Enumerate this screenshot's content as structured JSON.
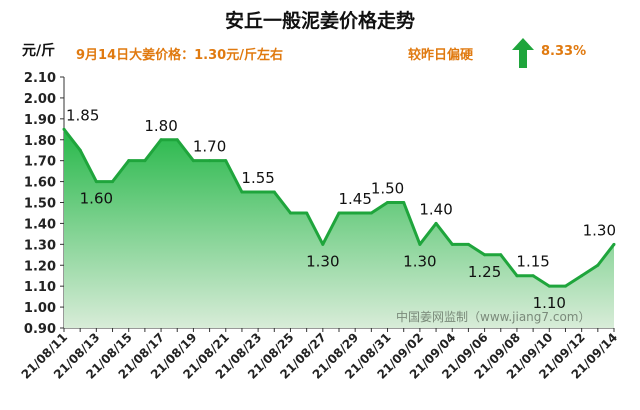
{
  "header": {
    "title": "安丘一般泥姜价格走势",
    "unit": "元/斤",
    "price_info": "9月14日大姜价格：1.30元/斤左右",
    "trend_label": "较昨日偏硬",
    "trend_value": "8.33%"
  },
  "colors": {
    "line": "#1fa53c",
    "fill_top": "#27b84a",
    "fill_bottom": "#d8ecd8",
    "accent": "#e07a10",
    "arrow": "#1fa53c"
  },
  "chart_data": {
    "type": "area",
    "title": "安丘一般泥姜价格走势",
    "ylabel": "元/斤",
    "ylim": [
      0.9,
      2.1
    ],
    "ytick_step": 0.1,
    "x": [
      "21/08/11",
      "21/08/12",
      "21/08/13",
      "21/08/14",
      "21/08/15",
      "21/08/16",
      "21/08/17",
      "21/08/18",
      "21/08/19",
      "21/08/20",
      "21/08/21",
      "21/08/22",
      "21/08/23",
      "21/08/24",
      "21/08/25",
      "21/08/26",
      "21/08/27",
      "21/08/28",
      "21/08/29",
      "21/08/30",
      "21/08/31",
      "21/09/01",
      "21/09/02",
      "21/09/03",
      "21/09/04",
      "21/09/05",
      "21/09/06",
      "21/09/07",
      "21/09/08",
      "21/09/09",
      "21/09/10",
      "21/09/11",
      "21/09/12",
      "21/09/13",
      "21/09/14"
    ],
    "values": [
      1.85,
      1.75,
      1.6,
      1.6,
      1.7,
      1.7,
      1.8,
      1.8,
      1.7,
      1.7,
      1.7,
      1.55,
      1.55,
      1.55,
      1.45,
      1.45,
      1.3,
      1.45,
      1.45,
      1.45,
      1.5,
      1.5,
      1.3,
      1.4,
      1.3,
      1.3,
      1.25,
      1.25,
      1.15,
      1.15,
      1.1,
      1.1,
      1.15,
      1.2,
      1.3
    ],
    "tick_labels": [
      "21/08/11",
      "21/08/13",
      "21/08/15",
      "21/08/17",
      "21/08/19",
      "21/08/21",
      "21/08/23",
      "21/08/25",
      "21/08/27",
      "21/08/29",
      "21/08/31",
      "21/09/02",
      "21/09/04",
      "21/09/06",
      "21/09/08",
      "21/09/10",
      "21/09/12",
      "21/09/14"
    ],
    "data_labels": [
      {
        "index": 0,
        "text": "1.85"
      },
      {
        "index": 2,
        "text": "1.60"
      },
      {
        "index": 6,
        "text": "1.80"
      },
      {
        "index": 9,
        "text": "1.70"
      },
      {
        "index": 12,
        "text": "1.55"
      },
      {
        "index": 16,
        "text": "1.30"
      },
      {
        "index": 18,
        "text": "1.45"
      },
      {
        "index": 20,
        "text": "1.50"
      },
      {
        "index": 22,
        "text": "1.30"
      },
      {
        "index": 23,
        "text": "1.40"
      },
      {
        "index": 26,
        "text": "1.25"
      },
      {
        "index": 29,
        "text": "1.15"
      },
      {
        "index": 30,
        "text": "1.10"
      },
      {
        "index": 34,
        "text": "1.30"
      }
    ],
    "watermark": "中国姜网监制（www.jiang7.com）",
    "grid": false
  }
}
